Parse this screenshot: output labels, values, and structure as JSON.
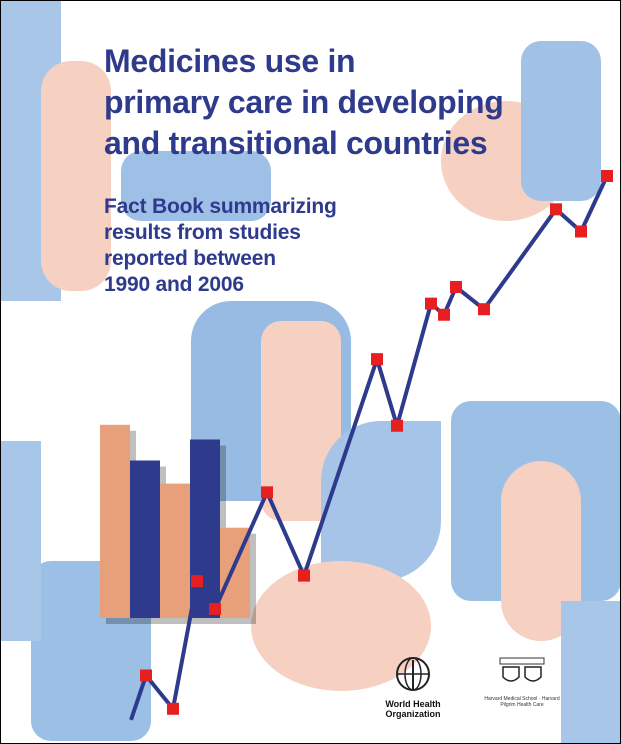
{
  "cover": {
    "title_lines": [
      "Medicines use in",
      "primary care in developing",
      "and transitional countries"
    ],
    "subtitle_lines": [
      "Fact Book summarizing",
      "results from studies",
      "reported between",
      "1990 and 2006"
    ]
  },
  "colors": {
    "title": "#2e3a8c",
    "blue_bar": "#2e3a8c",
    "salmon_bar": "#e8a07a",
    "line": "#2e3a8c",
    "marker": "#e62020",
    "bg_blue": "#8fb4e0",
    "bg_salmon": "#f3c2ae"
  },
  "decor_chart": {
    "bars": [
      {
        "color": "salmon",
        "level": 0.92
      },
      {
        "color": "blue",
        "level": 0.75
      },
      {
        "color": "salmon",
        "level": 0.64
      },
      {
        "color": "blue",
        "level": 0.85
      },
      {
        "color": "salmon",
        "level": 0.43
      }
    ],
    "line_levels": [
      0.02,
      0.1,
      0.04,
      0.27,
      0.22,
      0.43,
      0.28,
      0.67,
      0.55,
      0.77,
      0.75,
      0.8,
      0.76,
      0.94,
      0.9,
      1.0
    ]
  },
  "logos": {
    "who": {
      "icon": "who-emblem",
      "text": "World Health Organization"
    },
    "harvard": {
      "icon": "harvard-shields",
      "text": "Harvard Medical School · Harvard Pilgrim Health Care"
    }
  }
}
